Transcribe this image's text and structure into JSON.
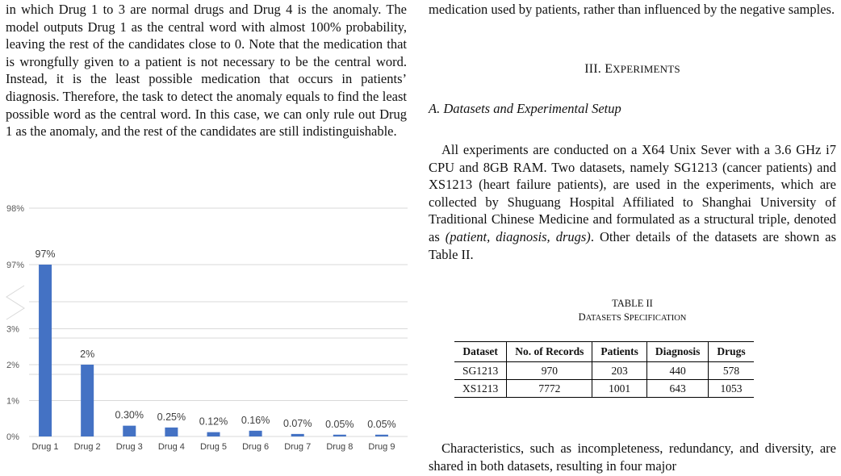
{
  "left_column": {
    "paragraph": "in which Drug 1 to 3 are normal drugs and Drug 4 is the anomaly. The model outputs Drug 1 as the central word with almost 100% probability, leaving the rest of the candidates close to 0. Note that the medication that is wrongfully given to a patient is not necessary to be the central word. Instead, it is the least possible medication that occurs in patients’ diagnosis. Therefore, the task to detect the anomaly equals to find the least possible word as the central word. In this case, we can only rule out Drug 1 as the anomaly, and the rest of the candidates are still indistinguishable."
  },
  "right_column": {
    "paragraph_top": "medication used by patients, rather than influenced by the negative samples.",
    "section_heading": {
      "numeral": "III.",
      "initial": "E",
      "rest": "XPERIMENTS"
    },
    "subsection_heading": "A. Datasets and Experimental Setup",
    "setup_paragraph": {
      "part1": "All experiments are conducted on a X64 Unix Sever with a 3.6 GHz i7 CPU and 8GB RAM. Two datasets, namely SG1213 (cancer patients) and XS1213 (heart failure patients), are used in the experiments, which are collected by Shuguang Hospital Affiliated to Shanghai University of Traditional Chinese Medicine and formulated as a structural triple, denoted as ",
      "math": "(patient, diagnosis, drugs)",
      "part2": ". Other details of the datasets are shown as Table II."
    },
    "table": {
      "label": "TABLE II",
      "title_initial_1": "D",
      "title_rest_1": "ATASETS",
      "title_initial_2": "S",
      "title_rest_2": "PECIFICATION",
      "headers": [
        "Dataset",
        "No. of Records",
        "Patients",
        "Diagnosis",
        "Drugs"
      ],
      "rows": [
        [
          "SG1213",
          "970",
          "203",
          "440",
          "578"
        ],
        [
          "XS1213",
          "7772",
          "1001",
          "643",
          "1053"
        ]
      ]
    },
    "paragraph_bottom": "Characteristics, such as incompleteness, redundancy, and diversity, are shared in both datasets, resulting in four major"
  },
  "chart_data": {
    "type": "bar",
    "categories": [
      "Drug 1",
      "Drug 2",
      "Drug 3",
      "Drug 4",
      "Drug 5",
      "Drug 6",
      "Drug 7",
      "Drug 8",
      "Drug 9"
    ],
    "values": [
      97,
      2,
      0.3,
      0.25,
      0.12,
      0.16,
      0.07,
      0.05,
      0.05
    ],
    "data_labels": [
      "97%",
      "2%",
      "0.30%",
      "0.25%",
      "0.12%",
      "0.16%",
      "0.07%",
      "0.05%",
      "0.05%"
    ],
    "y_tick_labels": [
      "0%",
      "1%",
      "2%",
      "3%",
      "97%",
      "98%"
    ],
    "y_axis_break": true,
    "lower_ylim": [
      0,
      3
    ],
    "upper_ylim": [
      97,
      98
    ],
    "bar_color": "#4472C4",
    "grid": true
  }
}
